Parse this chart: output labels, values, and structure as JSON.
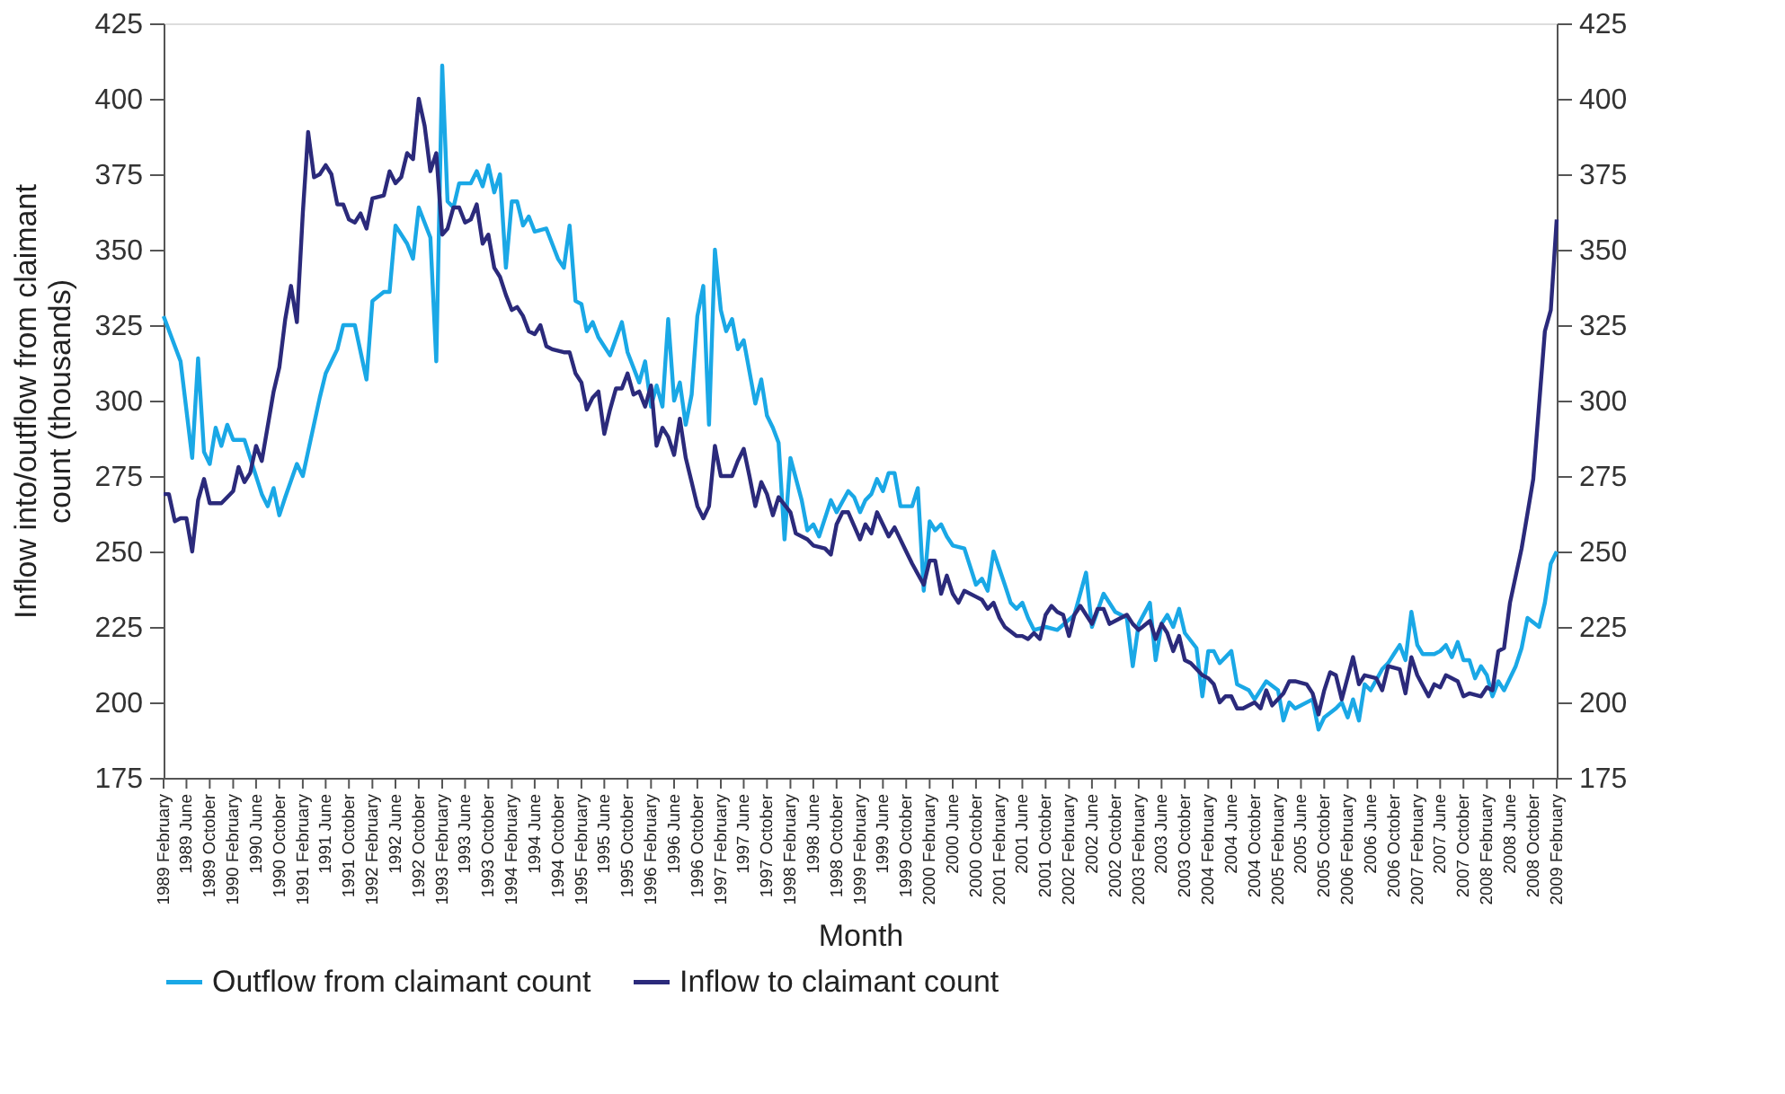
{
  "chart_data": {
    "type": "line",
    "xlabel": "Month",
    "ylabel": "Inflow into/outflow from claimant count (thousands)",
    "legend": "bottom",
    "grid": false,
    "ylim": [
      175,
      425
    ],
    "yticks": [
      175,
      200,
      225,
      250,
      275,
      300,
      325,
      350,
      375,
      400,
      425
    ],
    "y2lim": [
      175,
      425
    ],
    "y2ticks": [
      175,
      200,
      225,
      250,
      275,
      300,
      325,
      350,
      375,
      400,
      425
    ],
    "xlim": [
      "1989-02",
      "2009-02"
    ],
    "xticks": [
      {
        "value": "1989-02",
        "label": "1989 February"
      },
      {
        "value": "1989-06",
        "label": "1989 June"
      },
      {
        "value": "1989-10",
        "label": "1989 October"
      },
      {
        "value": "1990-02",
        "label": "1990 February"
      },
      {
        "value": "1990-06",
        "label": "1990 June"
      },
      {
        "value": "1990-10",
        "label": "1990 October"
      },
      {
        "value": "1991-02",
        "label": "1991 February"
      },
      {
        "value": "1991-06",
        "label": "1991 June"
      },
      {
        "value": "1991-10",
        "label": "1991 October"
      },
      {
        "value": "1992-02",
        "label": "1992 February"
      },
      {
        "value": "1992-06",
        "label": "1992 June"
      },
      {
        "value": "1992-10",
        "label": "1992 October"
      },
      {
        "value": "1993-02",
        "label": "1993 February"
      },
      {
        "value": "1993-06",
        "label": "1993 June"
      },
      {
        "value": "1993-10",
        "label": "1993 October"
      },
      {
        "value": "1994-02",
        "label": "1994 February"
      },
      {
        "value": "1994-06",
        "label": "1994 June"
      },
      {
        "value": "1994-10",
        "label": "1994 October"
      },
      {
        "value": "1995-02",
        "label": "1995 February"
      },
      {
        "value": "1995-06",
        "label": "1995 June"
      },
      {
        "value": "1995-10",
        "label": "1995 October"
      },
      {
        "value": "1996-02",
        "label": "1996 February"
      },
      {
        "value": "1996-06",
        "label": "1996 June"
      },
      {
        "value": "1996-10",
        "label": "1996 October"
      },
      {
        "value": "1997-02",
        "label": "1997 February"
      },
      {
        "value": "1997-06",
        "label": "1997 June"
      },
      {
        "value": "1997-10",
        "label": "1997 October"
      },
      {
        "value": "1998-02",
        "label": "1998 February"
      },
      {
        "value": "1998-06",
        "label": "1998 June"
      },
      {
        "value": "1998-10",
        "label": "1998 October"
      },
      {
        "value": "1999-02",
        "label": "1999 February"
      },
      {
        "value": "1999-06",
        "label": "1999 June"
      },
      {
        "value": "1999-10",
        "label": "1999 October"
      },
      {
        "value": "2000-02",
        "label": "2000 February"
      },
      {
        "value": "2000-06",
        "label": "2000 June"
      },
      {
        "value": "2000-10",
        "label": "2000 October"
      },
      {
        "value": "2001-02",
        "label": "2001 February"
      },
      {
        "value": "2001-06",
        "label": "2001 June"
      },
      {
        "value": "2001-10",
        "label": "2001 October"
      },
      {
        "value": "2002-02",
        "label": "2002 February"
      },
      {
        "value": "2002-06",
        "label": "2002 June"
      },
      {
        "value": "2002-10",
        "label": "2002 October"
      },
      {
        "value": "2003-02",
        "label": "2003 February"
      },
      {
        "value": "2003-06",
        "label": "2003 June"
      },
      {
        "value": "2003-10",
        "label": "2003 October"
      },
      {
        "value": "2004-02",
        "label": "2004 February"
      },
      {
        "value": "2004-06",
        "label": "2004 June"
      },
      {
        "value": "2004-10",
        "label": "2004 October"
      },
      {
        "value": "2005-02",
        "label": "2005 February"
      },
      {
        "value": "2005-06",
        "label": "2005 June"
      },
      {
        "value": "2005-10",
        "label": "2005 October"
      },
      {
        "value": "2006-02",
        "label": "2006 February"
      },
      {
        "value": "2006-06",
        "label": "2006 June"
      },
      {
        "value": "2006-10",
        "label": "2006 October"
      },
      {
        "value": "2007-02",
        "label": "2007 February"
      },
      {
        "value": "2007-06",
        "label": "2007 June"
      },
      {
        "value": "2007-10",
        "label": "2007 October"
      },
      {
        "value": "2008-02",
        "label": "2008 February"
      },
      {
        "value": "2008-06",
        "label": "2008 June"
      },
      {
        "value": "2008-10",
        "label": "2008 October"
      },
      {
        "value": "2009-02",
        "label": "2009 February"
      }
    ],
    "series": [
      {
        "name": "Outflow from claimant count",
        "color": "#1aa8e6",
        "x": [
          "1989-02",
          "1989-05",
          "1989-07",
          "1989-08",
          "1989-09",
          "1989-10",
          "1989-11",
          "1989-12",
          "1990-01",
          "1990-02",
          "1990-04",
          "1990-07",
          "1990-08",
          "1990-09",
          "1990-10",
          "1990-11",
          "1991-01",
          "1991-02",
          "1991-05",
          "1991-06",
          "1991-08",
          "1991-09",
          "1991-11",
          "1992-01",
          "1992-02",
          "1992-04",
          "1992-05",
          "1992-06",
          "1992-08",
          "1992-09",
          "1992-10",
          "1992-12",
          "1993-01",
          "1993-02",
          "1993-03",
          "1993-04",
          "1993-05",
          "1993-07",
          "1993-08",
          "1993-09",
          "1993-10",
          "1993-11",
          "1993-12",
          "1994-01",
          "1994-02",
          "1994-03",
          "1994-04",
          "1994-05",
          "1994-06",
          "1994-08",
          "1994-10",
          "1994-11",
          "1994-12",
          "1995-01",
          "1995-02",
          "1995-03",
          "1995-04",
          "1995-05",
          "1995-07",
          "1995-09",
          "1995-10",
          "1995-12",
          "1996-01",
          "1996-02",
          "1996-03",
          "1996-04",
          "1996-05",
          "1996-06",
          "1996-07",
          "1996-08",
          "1996-09",
          "1996-10",
          "1996-11",
          "1996-12",
          "1997-01",
          "1997-02",
          "1997-03",
          "1997-04",
          "1997-05",
          "1997-06",
          "1997-08",
          "1997-09",
          "1997-10",
          "1997-11",
          "1997-12",
          "1998-01",
          "1998-02",
          "1998-04",
          "1998-05",
          "1998-06",
          "1998-07",
          "1998-09",
          "1998-10",
          "1998-12",
          "1999-01",
          "1999-02",
          "1999-03",
          "1999-04",
          "1999-05",
          "1999-06",
          "1999-07",
          "1999-08",
          "1999-09",
          "1999-11",
          "1999-12",
          "2000-01",
          "2000-02",
          "2000-03",
          "2000-04",
          "2000-05",
          "2000-06",
          "2000-08",
          "2000-10",
          "2000-11",
          "2000-12",
          "2001-01",
          "2001-03",
          "2001-04",
          "2001-05",
          "2001-06",
          "2001-07",
          "2001-08",
          "2001-10",
          "2001-12",
          "2002-03",
          "2002-05",
          "2002-06",
          "2002-08",
          "2002-10",
          "2002-12",
          "2003-01",
          "2003-02",
          "2003-04",
          "2003-05",
          "2003-06",
          "2003-07",
          "2003-08",
          "2003-09",
          "2003-10",
          "2003-12",
          "2004-01",
          "2004-02",
          "2004-03",
          "2004-04",
          "2004-06",
          "2004-07",
          "2004-09",
          "2004-10",
          "2004-12",
          "2005-02",
          "2005-03",
          "2005-04",
          "2005-05",
          "2005-08",
          "2005-09",
          "2005-10",
          "2005-12",
          "2006-01",
          "2006-02",
          "2006-03",
          "2006-04",
          "2006-05",
          "2006-06",
          "2006-08",
          "2006-09",
          "2006-10",
          "2006-11",
          "2006-12",
          "2007-01",
          "2007-02",
          "2007-03",
          "2007-05",
          "2007-06",
          "2007-07",
          "2007-08",
          "2007-09",
          "2007-10",
          "2007-11",
          "2007-12",
          "2008-01",
          "2008-02",
          "2008-03",
          "2008-04",
          "2008-05",
          "2008-07",
          "2008-08",
          "2008-09",
          "2008-11",
          "2008-12",
          "2009-01",
          "2009-02"
        ],
        "values": [
          328,
          313,
          281,
          314,
          283,
          279,
          291,
          285,
          292,
          287,
          287,
          269,
          265,
          271,
          262,
          268,
          279,
          275,
          301,
          309,
          317,
          325,
          325,
          307,
          333,
          336,
          336,
          358,
          352,
          347,
          364,
          354,
          313,
          411,
          366,
          364,
          372,
          372,
          376,
          371,
          378,
          369,
          375,
          344,
          366,
          366,
          358,
          361,
          356,
          357,
          347,
          344,
          358,
          333,
          332,
          323,
          326,
          321,
          315,
          326,
          316,
          306,
          313,
          298,
          305,
          298,
          327,
          300,
          306,
          292,
          302,
          328,
          338,
          292,
          350,
          330,
          323,
          327,
          317,
          320,
          299,
          307,
          295,
          291,
          286,
          254,
          281,
          267,
          257,
          259,
          255,
          267,
          263,
          270,
          268,
          263,
          267,
          269,
          274,
          270,
          276,
          276,
          265,
          265,
          271,
          237,
          260,
          257,
          259,
          255,
          252,
          251,
          239,
          241,
          237,
          250,
          239,
          233,
          231,
          233,
          228,
          224,
          225,
          224,
          229,
          243,
          225,
          236,
          230,
          228,
          212,
          226,
          233,
          214,
          226,
          229,
          225,
          231,
          223,
          218,
          202,
          217,
          217,
          213,
          217,
          206,
          204,
          201,
          207,
          204,
          194,
          200,
          198,
          201,
          191,
          195,
          198,
          200,
          195,
          201,
          194,
          206,
          204,
          211,
          213,
          216,
          219,
          214,
          230,
          219,
          216,
          216,
          217,
          219,
          215,
          220,
          214,
          214,
          208,
          212,
          209,
          202,
          207,
          204,
          212,
          218,
          228,
          225,
          233,
          246,
          250
        ]
      },
      {
        "name": "Inflow to claimant count",
        "color": "#2b2a7b",
        "x": [
          "1989-02",
          "1989-03",
          "1989-04",
          "1989-05",
          "1989-06",
          "1989-07",
          "1989-08",
          "1989-09",
          "1989-10",
          "1989-12",
          "1990-02",
          "1990-03",
          "1990-04",
          "1990-05",
          "1990-06",
          "1990-07",
          "1990-09",
          "1990-10",
          "1990-11",
          "1990-12",
          "1991-01",
          "1991-02",
          "1991-03",
          "1991-04",
          "1991-05",
          "1991-06",
          "1991-07",
          "1991-08",
          "1991-09",
          "1991-10",
          "1991-11",
          "1991-12",
          "1992-01",
          "1992-02",
          "1992-04",
          "1992-05",
          "1992-06",
          "1992-07",
          "1992-08",
          "1992-09",
          "1992-10",
          "1992-11",
          "1992-12",
          "1993-01",
          "1993-02",
          "1993-03",
          "1993-04",
          "1993-05",
          "1993-06",
          "1993-07",
          "1993-08",
          "1993-09",
          "1993-10",
          "1993-11",
          "1993-12",
          "1994-01",
          "1994-02",
          "1994-03",
          "1994-04",
          "1994-05",
          "1994-06",
          "1994-07",
          "1994-08",
          "1994-09",
          "1994-11",
          "1994-12",
          "1995-01",
          "1995-02",
          "1995-03",
          "1995-04",
          "1995-05",
          "1995-06",
          "1995-07",
          "1995-08",
          "1995-09",
          "1995-10",
          "1995-11",
          "1995-12",
          "1996-01",
          "1996-02",
          "1996-03",
          "1996-04",
          "1996-05",
          "1996-06",
          "1996-07",
          "1996-08",
          "1996-09",
          "1996-10",
          "1996-11",
          "1996-12",
          "1997-01",
          "1997-02",
          "1997-04",
          "1997-05",
          "1997-06",
          "1997-07",
          "1997-08",
          "1997-09",
          "1997-10",
          "1997-11",
          "1997-12",
          "1998-02",
          "1998-03",
          "1998-05",
          "1998-06",
          "1998-08",
          "1998-09",
          "1998-10",
          "1998-11",
          "1998-12",
          "1999-02",
          "1999-03",
          "1999-04",
          "1999-05",
          "1999-07",
          "1999-08",
          "1999-10",
          "1999-11",
          "2000-01",
          "2000-02",
          "2000-03",
          "2000-04",
          "2000-05",
          "2000-06",
          "2000-07",
          "2000-08",
          "2000-10",
          "2000-11",
          "2000-12",
          "2001-01",
          "2001-02",
          "2001-03",
          "2001-05",
          "2001-06",
          "2001-07",
          "2001-08",
          "2001-09",
          "2001-10",
          "2001-11",
          "2001-12",
          "2002-01",
          "2002-02",
          "2002-03",
          "2002-04",
          "2002-06",
          "2002-07",
          "2002-08",
          "2002-09",
          "2002-10",
          "2002-12",
          "2003-01",
          "2003-02",
          "2003-04",
          "2003-05",
          "2003-06",
          "2003-07",
          "2003-08",
          "2003-09",
          "2003-10",
          "2003-11",
          "2004-01",
          "2004-02",
          "2004-03",
          "2004-04",
          "2004-05",
          "2004-06",
          "2004-07",
          "2004-08",
          "2004-10",
          "2004-11",
          "2004-12",
          "2005-01",
          "2005-03",
          "2005-04",
          "2005-05",
          "2005-07",
          "2005-08",
          "2005-09",
          "2005-10",
          "2005-11",
          "2005-12",
          "2006-01",
          "2006-03",
          "2006-04",
          "2006-05",
          "2006-07",
          "2006-08",
          "2006-09",
          "2006-11",
          "2006-12",
          "2007-01",
          "2007-02",
          "2007-04",
          "2007-05",
          "2007-06",
          "2007-07",
          "2007-09",
          "2007-10",
          "2007-11",
          "2008-01",
          "2008-02",
          "2008-03",
          "2008-04",
          "2008-05",
          "2008-06",
          "2008-08",
          "2008-10",
          "2008-12",
          "2009-01",
          "2009-02"
        ],
        "values": [
          269,
          269,
          260,
          261,
          261,
          250,
          267,
          274,
          266,
          266,
          270,
          278,
          273,
          276,
          285,
          280,
          303,
          311,
          327,
          338,
          326,
          362,
          389,
          374,
          375,
          378,
          375,
          365,
          365,
          360,
          359,
          362,
          357,
          367,
          368,
          376,
          372,
          374,
          382,
          380,
          400,
          391,
          376,
          382,
          355,
          357,
          364,
          364,
          359,
          360,
          365,
          352,
          355,
          344,
          341,
          335,
          330,
          331,
          328,
          323,
          322,
          325,
          318,
          317,
          316,
          316,
          309,
          306,
          297,
          301,
          303,
          289,
          297,
          304,
          304,
          309,
          302,
          303,
          298,
          305,
          285,
          291,
          288,
          282,
          294,
          281,
          273,
          265,
          261,
          265,
          285,
          275,
          275,
          280,
          284,
          275,
          265,
          273,
          269,
          262,
          268,
          263,
          256,
          254,
          252,
          251,
          249,
          259,
          263,
          263,
          254,
          259,
          256,
          263,
          255,
          258,
          250,
          246,
          239,
          247,
          247,
          236,
          242,
          236,
          233,
          237,
          235,
          234,
          231,
          233,
          228,
          225,
          222,
          222,
          221,
          223,
          221,
          229,
          232,
          230,
          229,
          222,
          229,
          232,
          226,
          231,
          231,
          226,
          227,
          229,
          226,
          224,
          227,
          221,
          226,
          223,
          217,
          222,
          214,
          213,
          209,
          208,
          206,
          200,
          202,
          202,
          198,
          198,
          200,
          198,
          204,
          199,
          203,
          207,
          207,
          206,
          203,
          196,
          204,
          210,
          209,
          201,
          215,
          206,
          209,
          208,
          204,
          212,
          211,
          203,
          215,
          209,
          202,
          206,
          205,
          209,
          207,
          202,
          203,
          202,
          205,
          204,
          217,
          218,
          233,
          251,
          274,
          323,
          330,
          360
        ]
      }
    ]
  }
}
